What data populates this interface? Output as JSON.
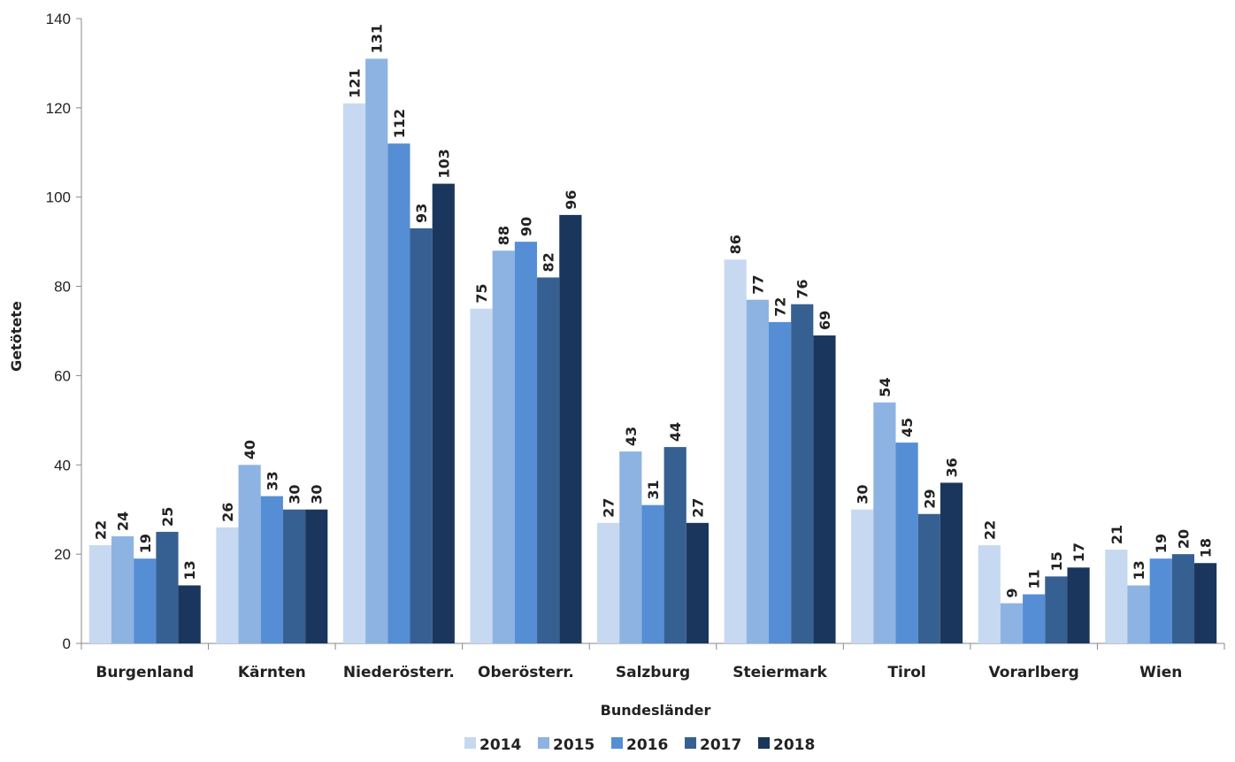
{
  "chart_data": {
    "type": "bar",
    "xlabel": "Bundesländer",
    "ylabel": "Getötete",
    "ylim": [
      0,
      140
    ],
    "yticks": [
      0,
      20,
      40,
      60,
      80,
      100,
      120,
      140
    ],
    "grid": false,
    "legend_position": "bottom",
    "categories": [
      "Burgenland",
      "Kärnten",
      "Niederösterr.",
      "Oberösterr.",
      "Salzburg",
      "Steiermark",
      "Tirol",
      "Vorarlberg",
      "Wien"
    ],
    "series": [
      {
        "name": "2014",
        "color": "#c6d9f1",
        "values": [
          22,
          26,
          121,
          75,
          27,
          86,
          30,
          22,
          21
        ]
      },
      {
        "name": "2015",
        "color": "#8db3e2",
        "values": [
          24,
          40,
          131,
          88,
          43,
          77,
          54,
          9,
          13
        ]
      },
      {
        "name": "2016",
        "color": "#558ed5",
        "values": [
          19,
          33,
          112,
          90,
          31,
          72,
          45,
          11,
          19
        ]
      },
      {
        "name": "2017",
        "color": "#376092",
        "values": [
          25,
          30,
          93,
          82,
          44,
          76,
          29,
          15,
          20
        ]
      },
      {
        "name": "2018",
        "color": "#1b365d",
        "values": [
          13,
          30,
          103,
          96,
          27,
          69,
          36,
          17,
          18
        ]
      }
    ]
  }
}
